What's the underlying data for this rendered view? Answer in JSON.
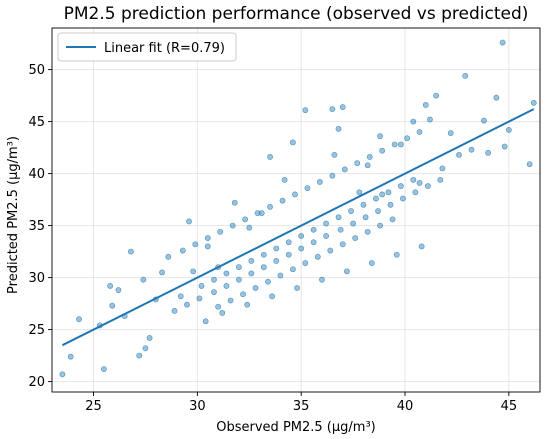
{
  "chart_data": {
    "type": "scatter",
    "title": "PM2.5 prediction performance (observed vs predicted)",
    "xlabel": "Observed PM2.5 (µg/m³)",
    "ylabel": "Predicted PM2.5 (µg/m³)",
    "xlim": [
      23.0,
      46.5
    ],
    "ylim": [
      19.0,
      54.0
    ],
    "xticks": [
      25,
      30,
      35,
      40,
      45
    ],
    "yticks": [
      20,
      25,
      30,
      35,
      40,
      45,
      50
    ],
    "grid": true,
    "legend_position": "top-left",
    "colors": {
      "points": "#1f77b4",
      "fit_line": "#1f77b4",
      "grid": "#e6e6e6"
    },
    "fit": {
      "name": "Linear fit (R=0.79)",
      "x": [
        23.5,
        46.2
      ],
      "y": [
        23.5,
        46.2
      ]
    },
    "series": [
      {
        "kind": "scatter",
        "x": [
          23.5,
          23.9,
          24.3,
          25.3,
          25.5,
          25.8,
          26.2,
          26.8,
          27.2,
          27.5,
          27.7,
          28.0,
          28.3,
          28.6,
          27.4,
          25.9,
          26.5,
          46.2,
          46.0,
          44.7,
          44.8,
          44.4,
          43.8,
          43.2,
          42.9,
          42.2,
          41.5,
          36.5,
          37.0,
          36.8,
          35.2,
          34.6,
          33.5,
          41.0,
          40.4,
          39.8,
          38.2,
          45.0,
          44.0,
          30.5,
          31.0,
          29.8,
          29.2,
          32.5,
          33.1,
          37.8,
          38.9,
          42.6,
          41.8,
          40.7,
          28.9,
          29.5,
          30.1,
          30.8,
          31.4,
          32.0,
          32.6,
          33.2,
          33.8,
          34.4,
          35.0,
          35.6,
          36.2,
          36.9,
          37.5,
          38.1,
          38.7,
          39.3,
          39.9,
          40.5,
          41.1,
          41.7,
          29.3,
          29.9,
          30.5,
          31.1,
          31.7,
          32.3,
          32.9,
          33.5,
          34.1,
          34.7,
          35.3,
          35.9,
          36.5,
          37.1,
          37.7,
          38.3,
          38.9,
          39.5,
          40.1,
          40.7,
          30.2,
          30.8,
          31.4,
          32.0,
          32.6,
          33.2,
          33.8,
          34.4,
          35.0,
          35.6,
          36.2,
          36.8,
          37.4,
          38.0,
          38.6,
          39.2,
          39.8,
          40.4,
          31.0,
          31.6,
          32.2,
          32.8,
          33.4,
          34.0,
          34.6,
          35.2,
          35.8,
          36.4,
          37.0,
          37.6,
          38.2,
          38.8,
          39.4,
          30.4,
          31.2,
          32.4,
          33.6,
          34.8,
          36.0,
          37.2,
          38.4,
          39.6,
          40.8,
          29.6,
          31.8,
          34.2,
          36.6,
          38.8,
          41.2
        ],
        "y": [
          20.7,
          22.4,
          26.0,
          25.4,
          21.2,
          29.2,
          28.8,
          32.5,
          22.5,
          23.2,
          24.2,
          27.9,
          30.5,
          32.0,
          29.8,
          27.3,
          26.3,
          46.8,
          40.9,
          52.6,
          42.6,
          47.3,
          45.1,
          42.3,
          49.4,
          43.9,
          47.5,
          46.2,
          46.4,
          44.3,
          46.1,
          43.0,
          41.6,
          46.6,
          45.0,
          42.8,
          40.8,
          44.2,
          42.0,
          33.0,
          31.0,
          30.6,
          28.2,
          34.8,
          36.2,
          38.2,
          38.0,
          41.8,
          40.5,
          39.1,
          26.8,
          27.4,
          28.0,
          28.6,
          29.2,
          29.8,
          30.4,
          31.0,
          31.6,
          32.2,
          32.8,
          33.4,
          34.0,
          34.6,
          35.2,
          35.8,
          36.4,
          37.0,
          37.6,
          38.2,
          38.8,
          39.4,
          32.6,
          33.2,
          33.8,
          34.4,
          35.0,
          35.6,
          36.2,
          36.8,
          37.4,
          38.0,
          38.6,
          39.2,
          39.8,
          40.4,
          41.0,
          41.6,
          42.2,
          42.8,
          43.4,
          44.0,
          29.2,
          29.8,
          30.4,
          31.0,
          31.6,
          32.2,
          32.8,
          33.4,
          34.0,
          34.6,
          35.2,
          35.8,
          36.4,
          37.0,
          37.6,
          38.2,
          38.8,
          39.4,
          27.2,
          27.8,
          28.4,
          29.0,
          29.6,
          30.2,
          30.8,
          31.4,
          32.0,
          32.6,
          33.2,
          33.8,
          34.4,
          35.0,
          35.6,
          25.8,
          26.6,
          27.4,
          28.2,
          29.0,
          29.8,
          30.6,
          31.4,
          32.2,
          33.0,
          35.4,
          37.2,
          39.4,
          41.8,
          43.6,
          45.2
        ]
      }
    ]
  }
}
